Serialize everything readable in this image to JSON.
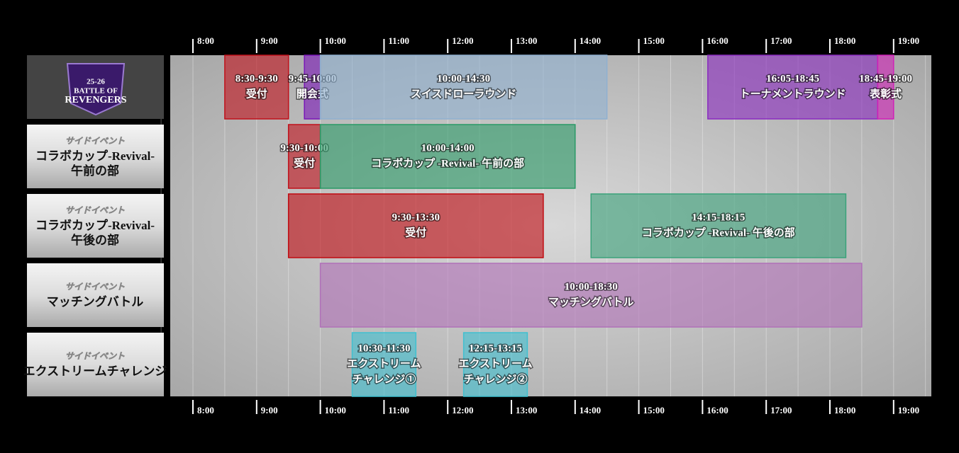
{
  "times": [
    "8:00",
    "9:00",
    "10:00",
    "11:00",
    "12:00",
    "13:00",
    "14:00",
    "15:00",
    "16:00",
    "17:00",
    "18:00",
    "19:00"
  ],
  "rows": [
    {
      "logo": [
        "25-26",
        "BATTLE OF",
        "REVENGERS"
      ],
      "events": [
        {
          "time": "8:30-9:30",
          "label": [
            "受付"
          ],
          "color": "#c0101a"
        },
        {
          "time": "9:45-10:00",
          "label": [
            "開会式"
          ],
          "color": "#7a16b8"
        },
        {
          "time": "10:00-14:30",
          "label": [
            "スイスドローラウンド"
          ],
          "color": "#8fb0d0"
        },
        {
          "time": "16:05-18:45",
          "label": [
            "トーナメントラウンド"
          ],
          "color": "#8a2ac0"
        },
        {
          "time": "18:45-19:00",
          "label": [
            "表彰式"
          ],
          "color": "#d020b8"
        }
      ]
    },
    {
      "kicker": "サイドイベント",
      "title": [
        "コラボカップ-Revival-",
        "午前の部"
      ],
      "events": [
        {
          "time": "9:30-10:00",
          "label": [
            "受付"
          ],
          "color": "#c0101a"
        },
        {
          "time": "10:00-14:00",
          "label": [
            "コラボカップ -Revival- 午前の部"
          ],
          "color": "#2a9a66"
        }
      ]
    },
    {
      "kicker": "サイドイベント",
      "title": [
        "コラボカップ-Revival-",
        "午後の部"
      ],
      "events": [
        {
          "time": "9:30-13:30",
          "label": [
            "受付"
          ],
          "color": "#c00a10"
        },
        {
          "time": "14:15-18:15",
          "label": [
            "コラボカップ -Revival- 午後の部"
          ],
          "color": "#3aa27a"
        }
      ]
    },
    {
      "kicker": "サイドイベント",
      "title": [
        "マッチングバトル"
      ],
      "events": [
        {
          "time": "10:00-18:30",
          "label": [
            "マッチングバトル"
          ],
          "color": "#b070b8"
        }
      ]
    },
    {
      "kicker": "サイドイベント",
      "title": [
        "エクストリームチャレンジ"
      ],
      "events": [
        {
          "time": "10:30-11:30",
          "label": [
            "エクストリーム",
            "チャレンジ①"
          ],
          "color": "#40c0d0"
        },
        {
          "time": "12:15-13:15",
          "label": [
            "エクストリーム",
            "チャレンジ②"
          ],
          "color": "#40c0d0"
        }
      ]
    }
  ]
}
